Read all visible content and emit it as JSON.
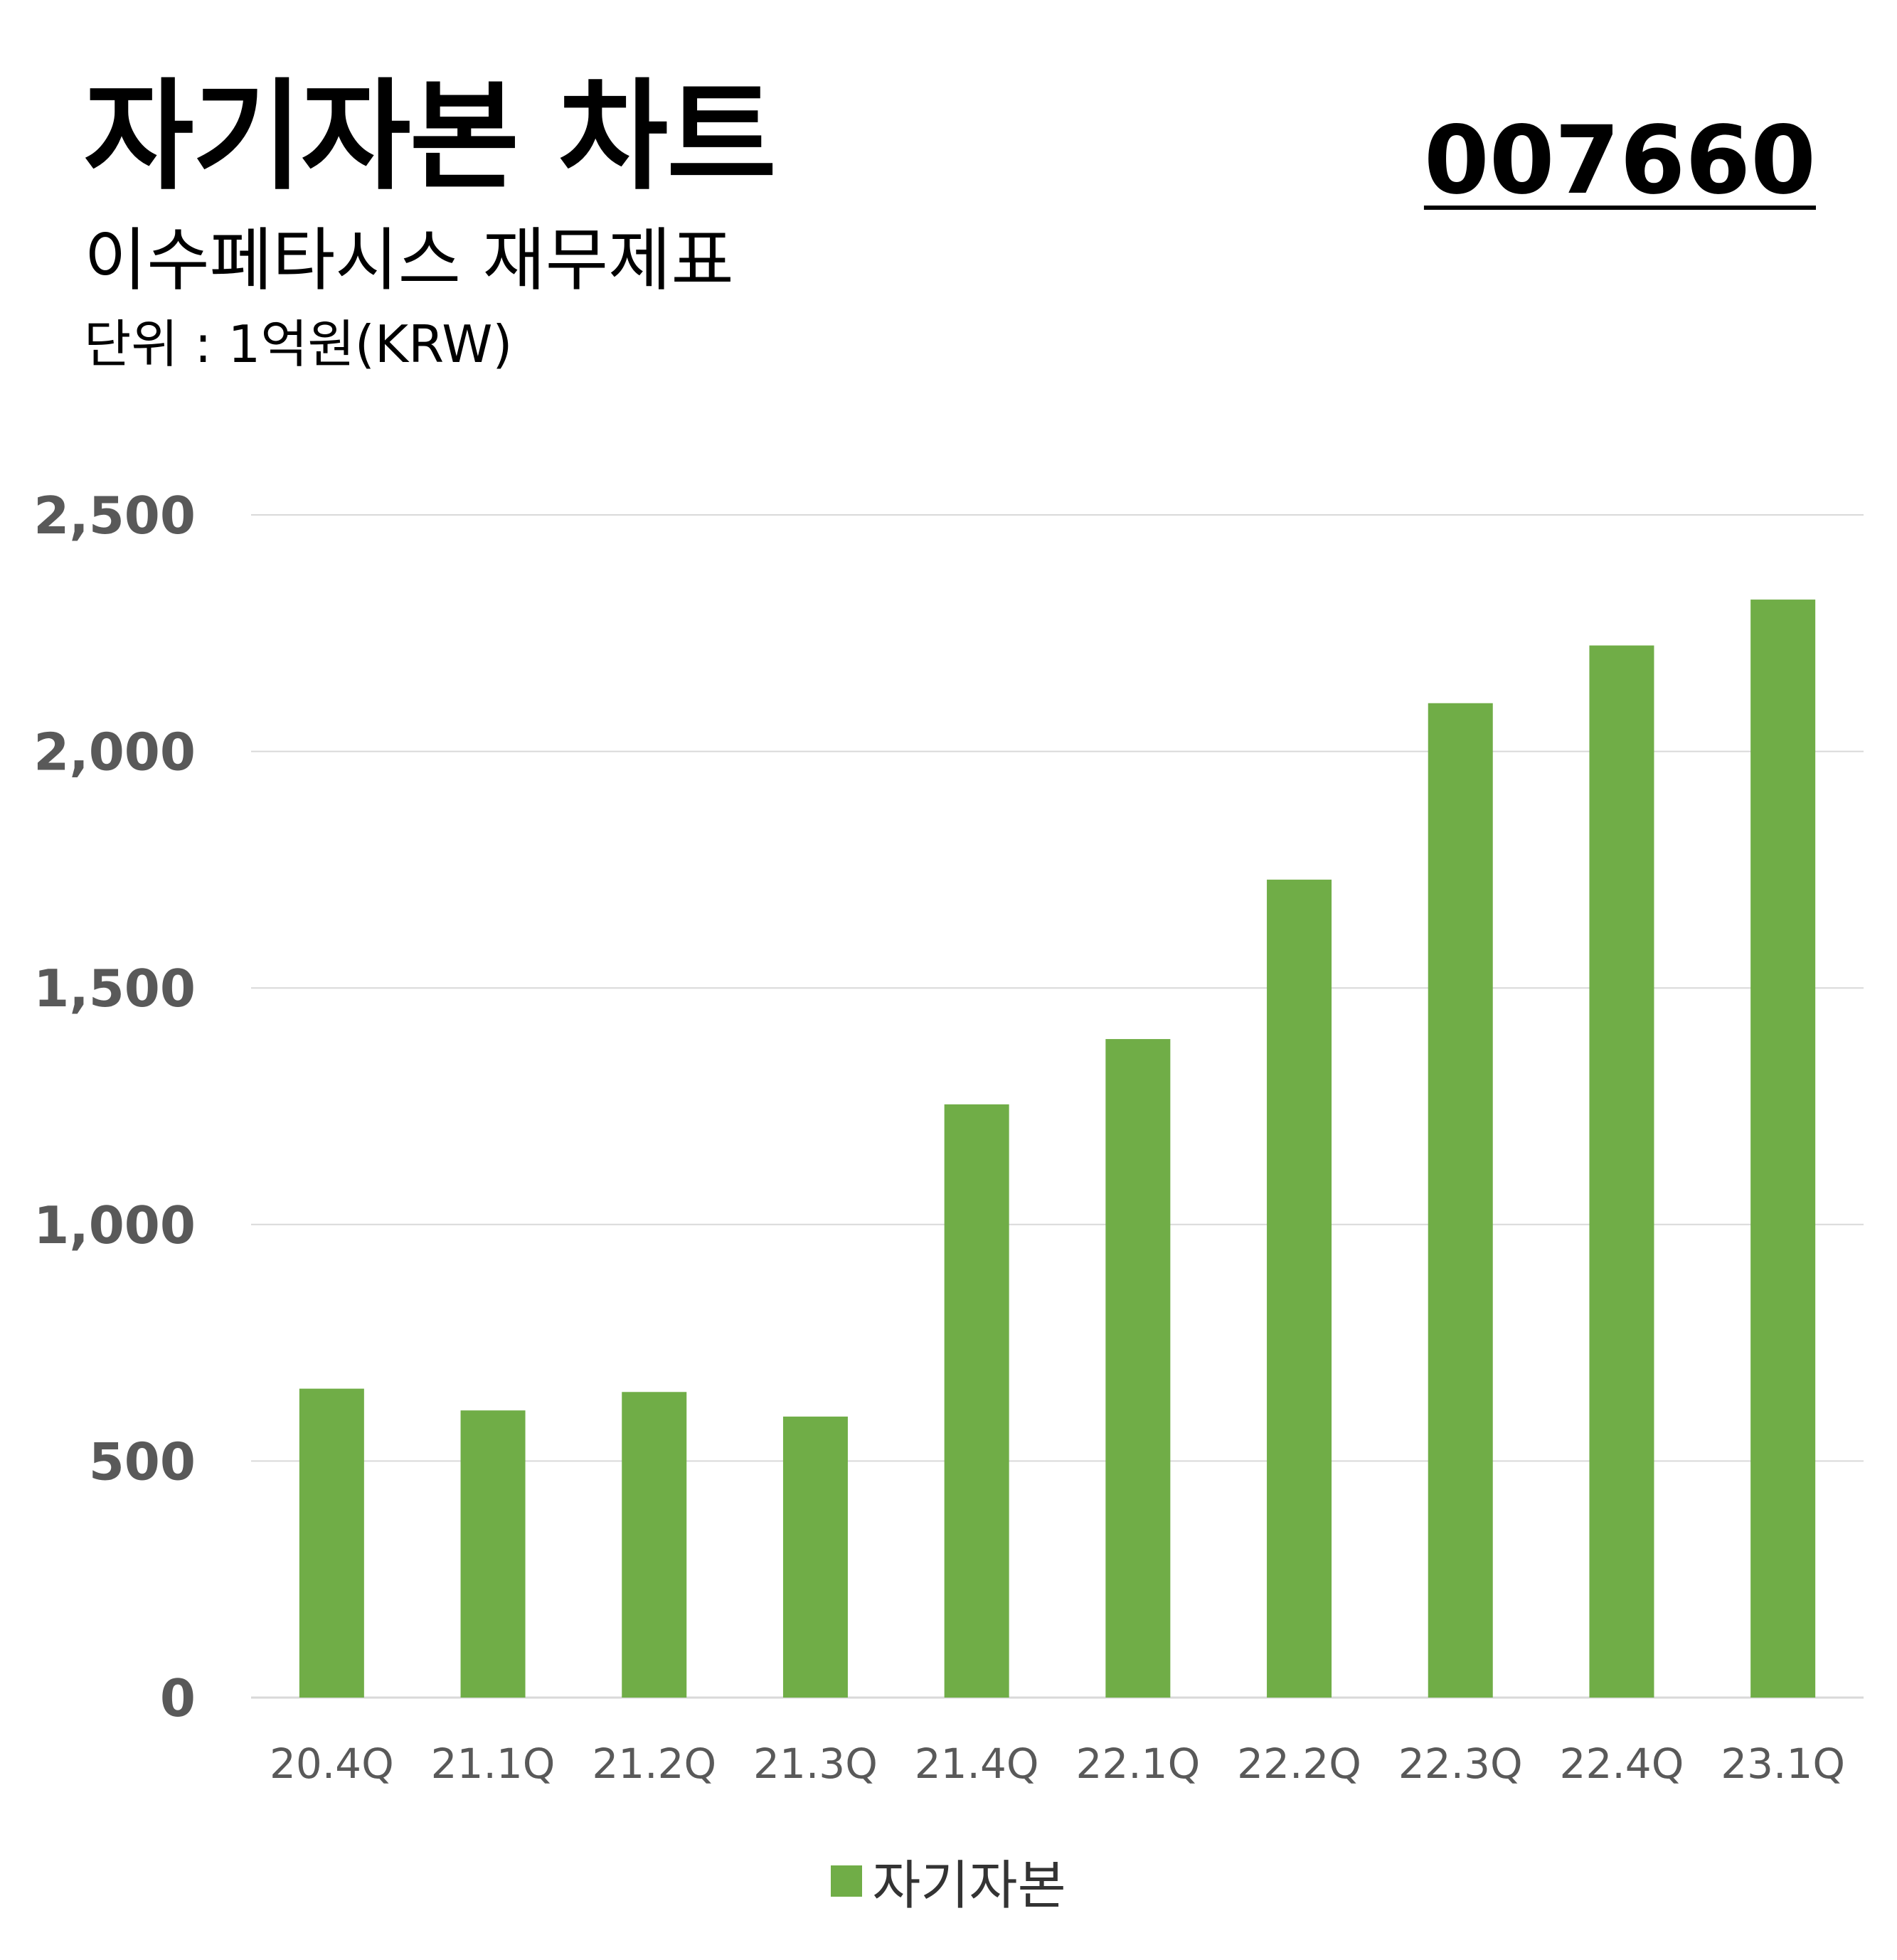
{
  "header": {
    "title": "자기자본 차트",
    "code": "007660",
    "subtitle": "이수페타시스 재무제표",
    "unit": "단위 : 1억원(KRW)"
  },
  "colors": {
    "bar": "#70ad47",
    "grid": "#d9d9d9",
    "axis_text": "#595959"
  },
  "chart_data": {
    "type": "bar",
    "categories": [
      "20.4Q",
      "21.1Q",
      "21.2Q",
      "21.3Q",
      "21.4Q",
      "22.1Q",
      "22.2Q",
      "22.3Q",
      "22.4Q",
      "23.1Q"
    ],
    "series": [
      {
        "name": "자기자본",
        "values": [
          653,
          607,
          646,
          594,
          1254,
          1392,
          1729,
          2102,
          2224,
          2321
        ]
      }
    ],
    "ylim": [
      0,
      2500
    ],
    "yticks": [
      0,
      500,
      1000,
      1500,
      2000,
      2500
    ],
    "ytick_labels": [
      "0",
      "500",
      "1,000",
      "1,500",
      "2,000",
      "2,500"
    ],
    "grid": true,
    "legend": "bottom"
  }
}
